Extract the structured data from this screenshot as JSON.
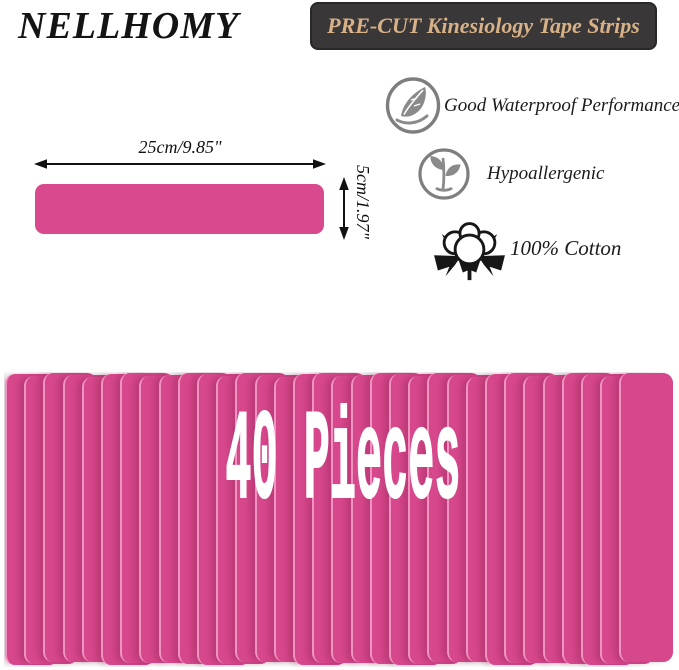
{
  "brand": "NELLHOMY",
  "banner": {
    "label": "PRE-CUT Kinesiology Tape Strips",
    "bg_color": "#3a3738",
    "text_color": "#d8b286"
  },
  "features": [
    {
      "icon": "waterproof-leaf-icon",
      "label": "Good Waterproof Performance"
    },
    {
      "icon": "sprout-icon",
      "label": "Hypoallergenic"
    },
    {
      "icon": "cotton-flower-icon",
      "label": "100% Cotton"
    }
  ],
  "dimensions": {
    "width_label": "25cm/9.85\"",
    "height_label": "5cm/1.97\""
  },
  "tape": {
    "color": "#d8498d",
    "edge_highlight": "#f193c1"
  },
  "fan": {
    "count_label": "40 Pieces",
    "strip_count": 33,
    "color": "#d6478b",
    "edge_highlight": "#f193c1"
  },
  "icon_colors": {
    "gray": "#848484",
    "black": "#171717"
  }
}
